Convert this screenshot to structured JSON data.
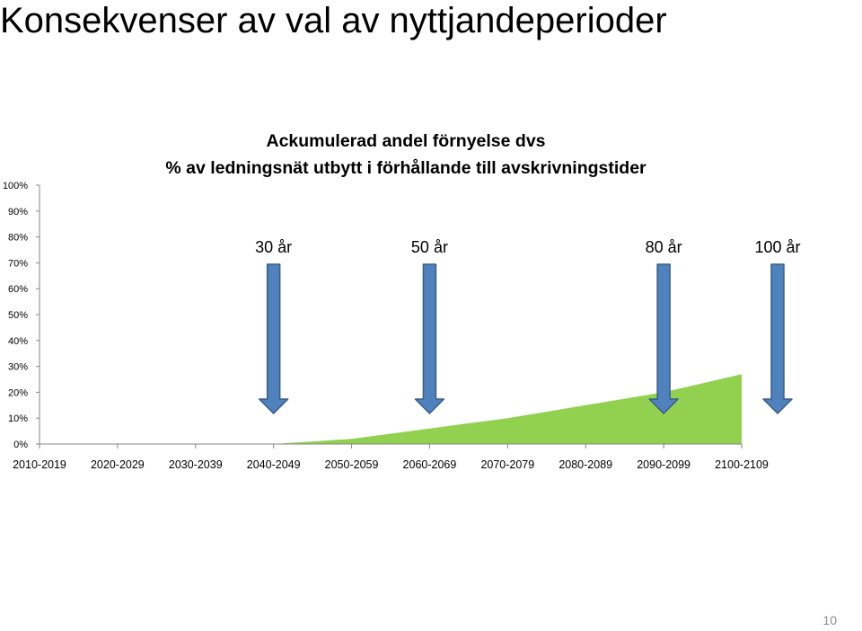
{
  "slide": {
    "title": "Konsekvenser av val av nyttjandeperioder",
    "page_number": "10"
  },
  "colors": {
    "area_fill": "#92D050",
    "arrow_fill": "#4F81BD",
    "arrow_stroke": "#385D8A",
    "axis": "#868686"
  },
  "chart_data": {
    "type": "area",
    "title": [
      "Ackumulerad andel förnyelse dvs",
      "% av ledningsnät utbytt i förhållande till avskrivningstider"
    ],
    "xlabel": "",
    "ylabel": "",
    "categories": [
      "2010-2019",
      "2020-2029",
      "2030-2039",
      "2040-2049",
      "2050-2059",
      "2060-2069",
      "2070-2079",
      "2080-2089",
      "2090-2099",
      "2100-2109"
    ],
    "y_ticks": [
      "0%",
      "10%",
      "20%",
      "30%",
      "40%",
      "50%",
      "60%",
      "70%",
      "80%",
      "90%",
      "100%"
    ],
    "ylim": [
      0,
      100
    ],
    "grid": false,
    "series": [
      {
        "values": [
          null,
          null,
          null,
          0,
          2,
          6,
          10,
          15,
          20,
          27
        ]
      }
    ],
    "annotations": [
      {
        "label": "30 år",
        "category": "2040-2049"
      },
      {
        "label": "50 år",
        "category": "2060-2069"
      },
      {
        "label": "80 år",
        "category": "2090-2099"
      },
      {
        "label": "100 år",
        "category": "2100-2109"
      }
    ]
  }
}
